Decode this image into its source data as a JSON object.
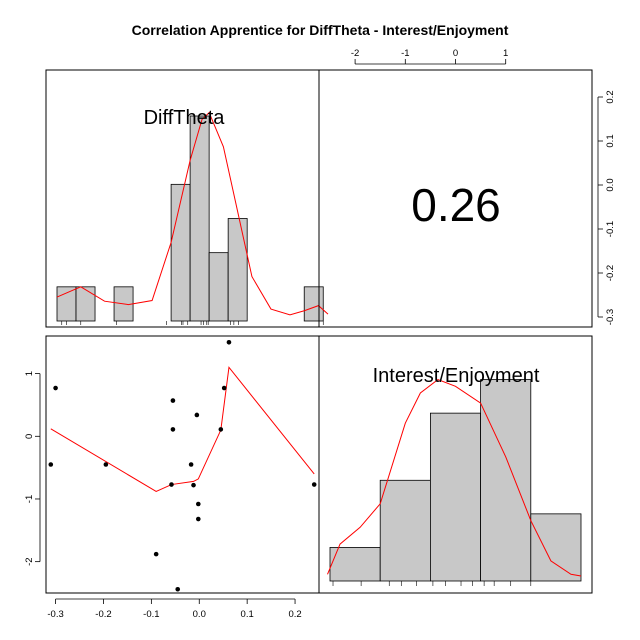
{
  "chart_data": {
    "type": "scatter-matrix",
    "title": "Correlation Apprentice for DiffTheta - Interest/Enjoyment",
    "variables": [
      "DiffTheta",
      "Interest/Enjoyment"
    ],
    "correlation": "0.26",
    "diff_theta_axis": {
      "range": [
        -0.32,
        0.25
      ],
      "ticks": [
        -0.3,
        -0.2,
        -0.1,
        0.0,
        0.1,
        0.2
      ],
      "tick_labels": [
        "-0.3",
        "-0.2",
        "-0.1",
        "0.0",
        "0.1",
        "0.2"
      ]
    },
    "interest_axis": {
      "range": [
        -2.5,
        1.6
      ],
      "ticks": [
        -2,
        -1,
        0,
        1
      ],
      "tick_labels": [
        "-2",
        "-1",
        "0",
        "1"
      ]
    },
    "scatter_points": [
      {
        "x": -0.31,
        "y": -0.45
      },
      {
        "x": -0.3,
        "y": 0.77
      },
      {
        "x": -0.195,
        "y": -0.45
      },
      {
        "x": -0.09,
        "y": -1.88
      },
      {
        "x": -0.058,
        "y": -0.77
      },
      {
        "x": -0.055,
        "y": 0.57
      },
      {
        "x": -0.055,
        "y": 0.11
      },
      {
        "x": -0.045,
        "y": -2.44
      },
      {
        "x": -0.017,
        "y": -0.45
      },
      {
        "x": -0.012,
        "y": -0.78
      },
      {
        "x": -0.005,
        "y": 0.34
      },
      {
        "x": -0.002,
        "y": -1.08
      },
      {
        "x": -0.002,
        "y": -1.32
      },
      {
        "x": 0.045,
        "y": 0.11
      },
      {
        "x": 0.052,
        "y": 0.77
      },
      {
        "x": 0.062,
        "y": 1.5
      },
      {
        "x": 0.24,
        "y": -0.77
      }
    ],
    "scatter_smooth": [
      {
        "x": -0.31,
        "y": 0.12
      },
      {
        "x": -0.09,
        "y": -0.88
      },
      {
        "x": -0.058,
        "y": -0.77
      },
      {
        "x": -0.012,
        "y": -0.72
      },
      {
        "x": -0.002,
        "y": -0.68
      },
      {
        "x": 0.045,
        "y": 0.1
      },
      {
        "x": 0.062,
        "y": 1.1
      },
      {
        "x": 0.24,
        "y": -0.6
      }
    ],
    "diff_theta_hist": {
      "breaks": [
        -0.32,
        -0.28,
        -0.24,
        -0.2,
        -0.16,
        -0.12,
        -0.08,
        -0.04,
        0.0,
        0.04,
        0.08,
        0.12,
        0.16,
        0.2,
        0.24
      ],
      "counts": [
        1,
        1,
        0,
        1,
        0,
        0,
        4,
        6,
        2,
        3,
        0,
        0,
        0,
        1
      ],
      "count_max": 7.2,
      "density_curve": [
        [
          -0.32,
          0.7
        ],
        [
          -0.27,
          1.0
        ],
        [
          -0.22,
          0.58
        ],
        [
          -0.17,
          0.48
        ],
        [
          -0.12,
          0.6
        ],
        [
          -0.08,
          2.3
        ],
        [
          -0.04,
          4.7
        ],
        [
          -0.015,
          5.9
        ],
        [
          0.0,
          6.1
        ],
        [
          0.03,
          5.1
        ],
        [
          0.06,
          3.2
        ],
        [
          0.09,
          1.3
        ],
        [
          0.13,
          0.35
        ],
        [
          0.17,
          0.18
        ],
        [
          0.2,
          0.3
        ],
        [
          0.23,
          0.45
        ],
        [
          0.25,
          0.2
        ]
      ],
      "rug": [
        -0.31,
        -0.3,
        -0.27,
        -0.195,
        -0.09,
        -0.058,
        -0.055,
        -0.045,
        -0.017,
        -0.012,
        -0.005,
        -0.002,
        0.045,
        0.052,
        0.062,
        0.24
      ]
    },
    "interest_hist": {
      "breaks": [
        -2.5,
        -1.5,
        -0.5,
        0.5,
        1.5
      ],
      "counts": [
        1,
        3,
        5,
        6
      ],
      "count_max": 7.0,
      "extra_bin": {
        "from": 1.5,
        "to": 2.5,
        "count": 2
      },
      "density_curve": [
        [
          -2.55,
          0.2
        ],
        [
          -2.3,
          1.1
        ],
        [
          -1.9,
          1.6
        ],
        [
          -1.5,
          2.3
        ],
        [
          -1.0,
          4.7
        ],
        [
          -0.7,
          5.6
        ],
        [
          -0.35,
          6.0
        ],
        [
          0.0,
          5.8
        ],
        [
          0.5,
          5.3
        ],
        [
          1.0,
          3.7
        ],
        [
          1.5,
          1.8
        ],
        [
          1.9,
          0.6
        ],
        [
          2.3,
          0.2
        ],
        [
          2.5,
          0.15
        ]
      ],
      "rug": [
        -2.44,
        -1.88,
        -1.32,
        -1.08,
        -0.78,
        -0.45,
        -0.2,
        0.11,
        0.34,
        0.57,
        0.77,
        1.1,
        1.5
      ]
    },
    "colors": {
      "bar_fill": "#c8c8c8",
      "curve": "#ff0000",
      "points": "#000000"
    }
  }
}
